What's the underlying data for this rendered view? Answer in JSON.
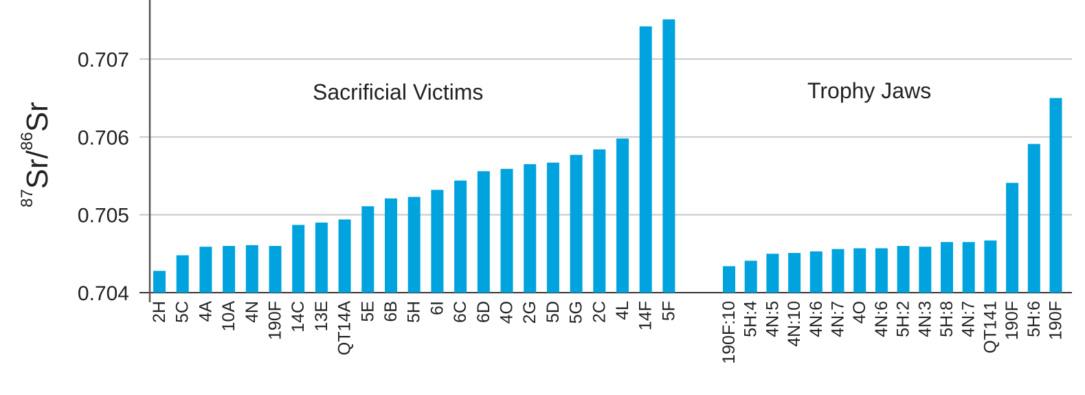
{
  "chart_data": {
    "type": "bar",
    "title": "",
    "xlabel": "",
    "ylabel": "87Sr/86Sr",
    "ylabel_parts": {
      "sup1": "87",
      "base1": "Sr/",
      "sup2": "86",
      "base2": "Sr"
    },
    "ylim": [
      0.704,
      0.7076
    ],
    "yticks": [
      0.704,
      0.705,
      0.706,
      0.707
    ],
    "ytick_labels": [
      "0.704",
      "0.705",
      "0.706",
      "0.707"
    ],
    "grid": "horizontal",
    "bar_color": "#00A3DD",
    "legend": null,
    "groups": [
      {
        "name": "Sacrificial Victims",
        "categories": [
          "2H",
          "5C",
          "4A",
          "10A",
          "4N",
          "190F",
          "14C",
          "13E",
          "QT14A",
          "5E",
          "6B",
          "5H",
          "6I",
          "6C",
          "6D",
          "4O",
          "2G",
          "5D",
          "5G",
          "2C",
          "4L",
          "14F",
          "5F"
        ],
        "values": [
          0.70428,
          0.70448,
          0.70459,
          0.7046,
          0.70461,
          0.7046,
          0.70487,
          0.7049,
          0.70494,
          0.70511,
          0.70521,
          0.70523,
          0.70532,
          0.70544,
          0.70556,
          0.70559,
          0.70565,
          0.70567,
          0.70577,
          0.70584,
          0.70598,
          0.70742,
          0.70751
        ]
      },
      {
        "name": "Trophy Jaws",
        "categories": [
          "190F:10",
          "5H:4",
          "4N:5",
          "4N:10",
          "4N:6",
          "4N:7",
          "4O",
          "4N:6",
          "5H:2",
          "4N:3",
          "5H:8",
          "4N:7",
          "QT141",
          "190F",
          "5H:6",
          "190F"
        ],
        "values": [
          0.70434,
          0.70441,
          0.7045,
          0.70451,
          0.70453,
          0.70456,
          0.70457,
          0.70457,
          0.7046,
          0.70459,
          0.70465,
          0.70465,
          0.70467,
          0.70541,
          0.70591,
          0.7065
        ]
      }
    ]
  }
}
